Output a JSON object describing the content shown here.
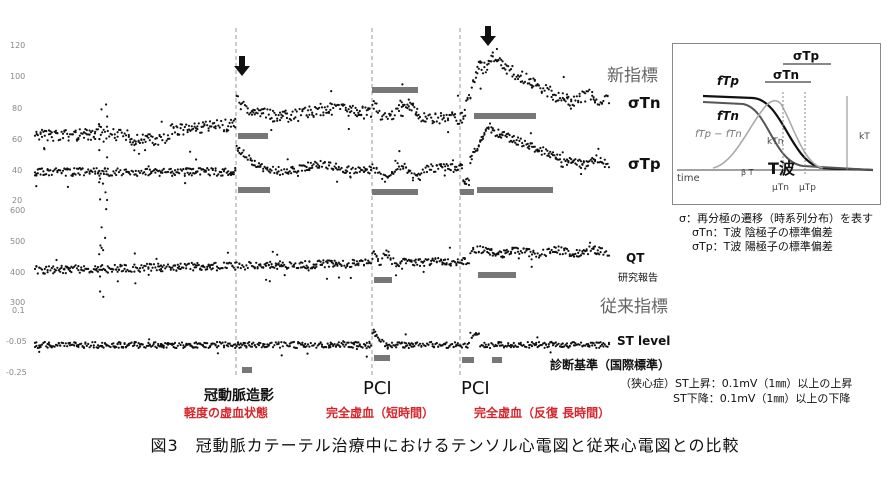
{
  "caption": "図3　冠動脈カテーテル治療中におけるテンソル心電図と従来心電図との比較",
  "section_labels": {
    "new": "新指標",
    "old": "従来指標"
  },
  "trace_labels": {
    "sigma_tn": "σTn",
    "sigma_tp": "σTp",
    "qt": "QT",
    "qt_sub": "研究報告",
    "st": "ST level",
    "st_sub": "診断基準（国際標準）"
  },
  "y_ticks_top": [
    "120",
    "100",
    "80",
    "60",
    "40",
    "20"
  ],
  "y_ticks_qt": [
    "600",
    "500",
    "400",
    "300"
  ],
  "y_ticks_st": [
    "0.1",
    "-0.05",
    "-0.25"
  ],
  "events": [
    {
      "title": "冠動脈造影",
      "subtitle": "軽度の虚血状態"
    },
    {
      "title": "PCI",
      "subtitle": "完全虚血（短時間）"
    },
    {
      "title": "PCI",
      "subtitle": "完全虚血（反復 長時間）"
    }
  ],
  "inset": {
    "sigma_tp": "σTp",
    "sigma_tn": "σTn",
    "f_tp": "fTp",
    "f_tn": "fTn",
    "diff": "fTp − fTn",
    "kTn": "kTn",
    "kT": "kT",
    "twave": "T波",
    "time": "time",
    "beta": "β T",
    "mu_tn": "μTn",
    "mu_tp": "μTp"
  },
  "notes": [
    "σ：再分極の遷移（時系列分布）を表す",
    "σTn：T波 陰極子の標準偏差",
    "σTp：T波 陽極子の標準偏差"
  ],
  "criteria": [
    "（狭心症）ST上昇：0.1mV（1㎜）以上の上昇",
    "ST下降：0.1mV（1㎜）以上の下降"
  ],
  "colors": {
    "trace": "#111111",
    "bar": "#777777",
    "red": "#d9232a",
    "dash": "#9a9a9a"
  }
}
